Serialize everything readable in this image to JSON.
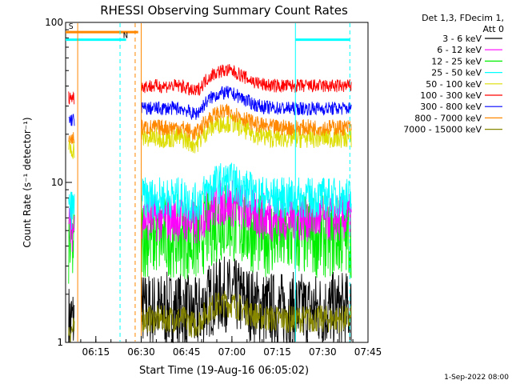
{
  "chart_data": {
    "type": "line",
    "title": "RHESSI Observing Summary Count Rates",
    "xlabel": "Start Time (19-Aug-16 06:05:02)",
    "ylabel": "Count Rate (s⁻¹ detector⁻¹)",
    "yscale": "log",
    "ylim": [
      1,
      100
    ],
    "y_ticks": [
      {
        "value": 1,
        "label": "1"
      },
      {
        "value": 10,
        "label": "10"
      },
      {
        "value": 100,
        "label": "100"
      }
    ],
    "xlim_minutes": [
      "06:05",
      "07:45"
    ],
    "x_ticks": [
      {
        "time": "06:15",
        "label": "06:15"
      },
      {
        "time": "06:30",
        "label": "06:30"
      },
      {
        "time": "06:45",
        "label": "06:45"
      },
      {
        "time": "07:00",
        "label": "07:00"
      },
      {
        "time": "07:15",
        "label": "07:15"
      },
      {
        "time": "07:30",
        "label": "07:30"
      },
      {
        "time": "07:45",
        "label": "07:45"
      }
    ],
    "legend_header": [
      "Det 1,3, FDecim 1,",
      "Att 0"
    ],
    "legend_position": "top-right",
    "data_gap": {
      "start": "06:08",
      "end": "06:30"
    },
    "series": [
      {
        "name": "3 - 6 keV",
        "color": "#000000",
        "level": 1.6,
        "noise": 0.55
      },
      {
        "name": "6 - 12 keV",
        "color": "#ff00ff",
        "level": 6.0,
        "noise": 0.35
      },
      {
        "name": "12 - 25 keV",
        "color": "#00ee00",
        "level": 4.6,
        "noise": 0.6
      },
      {
        "name": "25 - 50 keV",
        "color": "#00ffff",
        "level": 8.0,
        "noise": 0.3
      },
      {
        "name": "50 - 100 keV",
        "color": "#dddd00",
        "level": 19.0,
        "noise": 0.15
      },
      {
        "name": "100 - 300 keV",
        "color": "#ff0000",
        "level": 40.0,
        "noise": 0.1
      },
      {
        "name": "300 - 800 keV",
        "color": "#0000ff",
        "level": 29.0,
        "noise": 0.1
      },
      {
        "name": "800 - 7000 keV",
        "color": "#ff8800",
        "level": 22.0,
        "noise": 0.12
      },
      {
        "name": "7000 - 15000 keV",
        "color": "#888800",
        "level": 1.4,
        "noise": 0.2
      }
    ],
    "flags": [
      {
        "label": "S",
        "color": "#ff8800",
        "start": "06:05",
        "end": "06:29",
        "level": 87
      },
      {
        "label": "N",
        "color": "#00ffff",
        "start": "06:05",
        "end": "06:25",
        "level": 78
      },
      {
        "label": "N",
        "color": "#00ffff",
        "start": "07:21",
        "end": "07:39",
        "level": 78
      }
    ],
    "vlines": [
      {
        "time": "06:09",
        "color": "#ff8800",
        "style": "solid"
      },
      {
        "time": "06:23",
        "color": "#00ffff",
        "style": "dashed"
      },
      {
        "time": "06:28",
        "color": "#ff8800",
        "style": "dashed"
      },
      {
        "time": "06:30",
        "color": "#ff8800",
        "style": "solid"
      },
      {
        "time": "07:21",
        "color": "#00ffff",
        "style": "solid"
      },
      {
        "time": "07:39",
        "color": "#00ffff",
        "style": "dashed"
      }
    ],
    "grid": false
  },
  "footer": {
    "date": "1-Sep-2022 08:00"
  }
}
